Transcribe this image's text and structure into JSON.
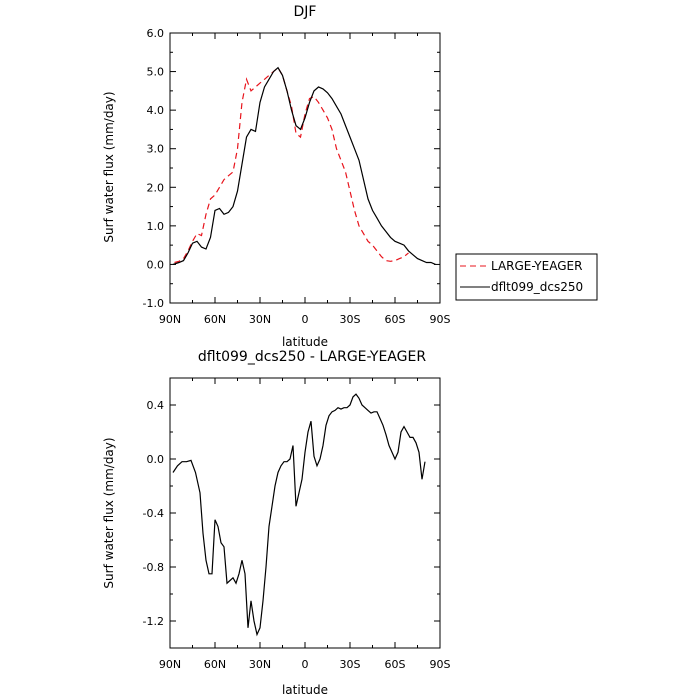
{
  "chart_data": [
    {
      "type": "line",
      "title": "DJF",
      "xlabel": "latitude",
      "ylabel": "Surf water flux (mm/day)",
      "x_ticks": [
        "90N",
        "60N",
        "30N",
        "0",
        "30S",
        "60S",
        "90S"
      ],
      "x_tick_values": [
        90,
        60,
        30,
        0,
        -30,
        -60,
        -90
      ],
      "xlim": [
        90,
        -90
      ],
      "ylim": [
        -1.0,
        6.0
      ],
      "y_ticks": [
        "-1.0",
        "0.0",
        "1.0",
        "2.0",
        "3.0",
        "4.0",
        "5.0",
        "6.0"
      ],
      "y_tick_values": [
        -1,
        0,
        1,
        2,
        3,
        4,
        5,
        6
      ],
      "grid": false,
      "legend_position": "right",
      "series": [
        {
          "name": "LARGE-YEAGER",
          "color": "#e8141c",
          "dash": "dashed",
          "x": [
            87,
            84,
            81,
            78,
            75,
            72,
            69,
            66,
            63,
            60,
            57,
            54,
            51,
            48,
            45,
            42,
            39,
            36,
            33,
            30,
            27,
            24,
            21,
            18,
            15,
            12,
            9,
            6,
            3,
            0,
            -3,
            -6,
            -9,
            -12,
            -15,
            -18,
            -21,
            -24,
            -27,
            -30,
            -33,
            -36,
            -39,
            -42,
            -45,
            -48,
            -51,
            -54,
            -57,
            -60,
            -63,
            -66,
            -69,
            -72,
            -75,
            -78,
            -81
          ],
          "values": [
            0.05,
            0.08,
            0.15,
            0.35,
            0.6,
            0.8,
            0.75,
            1.3,
            1.7,
            1.8,
            2.0,
            2.2,
            2.3,
            2.4,
            3.0,
            4.2,
            4.8,
            4.5,
            4.6,
            4.7,
            4.8,
            4.9,
            5.0,
            5.1,
            4.9,
            4.5,
            4.1,
            3.4,
            3.3,
            3.9,
            4.3,
            4.35,
            4.2,
            4.0,
            3.8,
            3.5,
            3.0,
            2.7,
            2.4,
            1.9,
            1.4,
            1.0,
            0.8,
            0.6,
            0.5,
            0.35,
            0.2,
            0.1,
            0.08,
            0.1,
            0.15,
            0.2,
            0.3,
            null,
            null,
            null,
            null
          ]
        },
        {
          "name": "dflt099_dcs250",
          "color": "#000000",
          "dash": "solid",
          "x": [
            88,
            84,
            81,
            78,
            75,
            72,
            69,
            66,
            63,
            60,
            57,
            54,
            51,
            48,
            45,
            42,
            39,
            36,
            33,
            30,
            27,
            24,
            21,
            18,
            15,
            12,
            9,
            6,
            3,
            0,
            -3,
            -6,
            -9,
            -12,
            -15,
            -18,
            -21,
            -24,
            -27,
            -30,
            -33,
            -36,
            -39,
            -42,
            -45,
            -48,
            -51,
            -54,
            -57,
            -60,
            -63,
            -66,
            -69,
            -72,
            -75,
            -78,
            -81,
            -84,
            -87
          ],
          "values": [
            0.0,
            0.05,
            0.1,
            0.3,
            0.55,
            0.6,
            0.45,
            0.4,
            0.7,
            1.4,
            1.45,
            1.3,
            1.35,
            1.5,
            1.9,
            2.6,
            3.3,
            3.5,
            3.45,
            4.2,
            4.6,
            4.8,
            5.0,
            5.1,
            4.9,
            4.5,
            4.0,
            3.6,
            3.5,
            3.8,
            4.2,
            4.5,
            4.6,
            4.55,
            4.45,
            4.3,
            4.1,
            3.9,
            3.6,
            3.3,
            3.0,
            2.7,
            2.2,
            1.7,
            1.4,
            1.2,
            1.0,
            0.85,
            0.7,
            0.6,
            0.55,
            0.5,
            0.35,
            0.25,
            0.15,
            0.1,
            0.05,
            0.05,
            0.0
          ]
        }
      ]
    },
    {
      "type": "line",
      "title": "dflt099_dcs250 - LARGE-YEAGER",
      "xlabel": "latitude",
      "ylabel": "Surf water flux (mm/day)",
      "x_ticks": [
        "90N",
        "60N",
        "30N",
        "0",
        "30S",
        "60S",
        "90S"
      ],
      "x_tick_values": [
        90,
        60,
        30,
        0,
        -30,
        -60,
        -90
      ],
      "xlim": [
        90,
        -90
      ],
      "ylim": [
        -1.4,
        0.6
      ],
      "y_ticks": [
        "-1.2",
        "-0.8",
        "-0.4",
        "0.0",
        "0.4"
      ],
      "y_tick_values": [
        -1.2,
        -0.8,
        -0.4,
        0.0,
        0.4
      ],
      "grid": false,
      "series": [
        {
          "color": "#000000",
          "dash": "solid",
          "x": [
            88,
            85,
            82,
            79,
            76,
            73,
            70,
            68,
            66,
            64,
            62,
            60,
            58,
            56,
            54,
            52,
            50,
            48,
            46,
            44,
            42,
            40,
            38,
            36,
            34,
            32,
            30,
            28,
            26,
            24,
            22,
            20,
            18,
            16,
            14,
            12,
            10,
            8,
            6,
            4,
            2,
            0,
            -2,
            -4,
            -6,
            -8,
            -10,
            -12,
            -14,
            -16,
            -18,
            -20,
            -22,
            -24,
            -26,
            -28,
            -30,
            -32,
            -34,
            -36,
            -38,
            -40,
            -42,
            -44,
            -46,
            -48,
            -50,
            -52,
            -54,
            -56,
            -58,
            -60,
            -62,
            -64,
            -66,
            -68,
            -70,
            -72,
            -74,
            -76,
            -78,
            -80
          ],
          "values": [
            -0.1,
            -0.05,
            -0.02,
            -0.02,
            -0.01,
            -0.1,
            -0.25,
            -0.55,
            -0.75,
            -0.85,
            -0.85,
            -0.45,
            -0.5,
            -0.62,
            -0.65,
            -0.92,
            -0.9,
            -0.88,
            -0.92,
            -0.85,
            -0.75,
            -0.85,
            -1.25,
            -1.05,
            -1.2,
            -1.3,
            -1.25,
            -1.05,
            -0.8,
            -0.5,
            -0.35,
            -0.2,
            -0.1,
            -0.05,
            -0.02,
            -0.02,
            0.0,
            0.1,
            -0.35,
            -0.25,
            -0.15,
            0.05,
            0.2,
            0.28,
            0.02,
            -0.05,
            0.0,
            0.1,
            0.25,
            0.32,
            0.35,
            0.36,
            0.38,
            0.37,
            0.38,
            0.38,
            0.4,
            0.46,
            0.48,
            0.45,
            0.4,
            0.38,
            0.36,
            0.34,
            0.35,
            0.35,
            0.3,
            0.25,
            0.18,
            0.1,
            0.05,
            0.0,
            0.05,
            0.2,
            0.24,
            0.2,
            0.16,
            0.16,
            0.12,
            0.05,
            -0.15,
            -0.02
          ]
        }
      ]
    }
  ]
}
